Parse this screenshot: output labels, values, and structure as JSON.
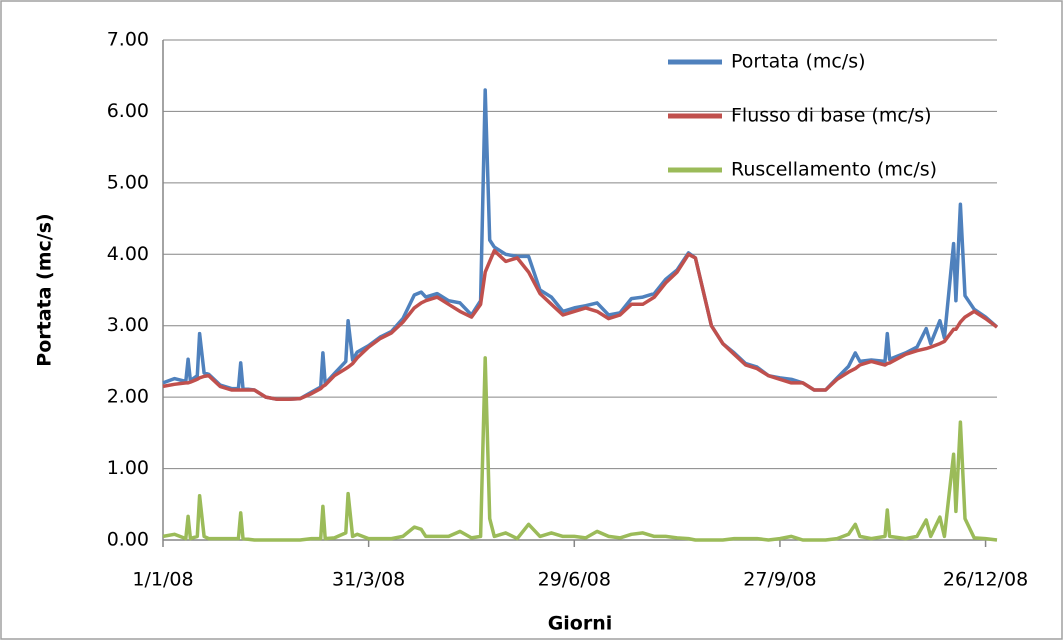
{
  "chart_data": {
    "type": "line",
    "y_label": "Portata (mc/s)",
    "x_label": "Giorni",
    "x": [
      0,
      5,
      10,
      11,
      12,
      15,
      16,
      18,
      20,
      25,
      30,
      33,
      34,
      35,
      40,
      45,
      50,
      55,
      60,
      65,
      69,
      70,
      71,
      75,
      80,
      81,
      83,
      85,
      90,
      95,
      100,
      105,
      110,
      113,
      115,
      120,
      125,
      130,
      135,
      139,
      141,
      143,
      145,
      150,
      155,
      160,
      165,
      170,
      175,
      180,
      185,
      190,
      195,
      200,
      205,
      210,
      215,
      220,
      225,
      230,
      233,
      240,
      245,
      250,
      255,
      260,
      265,
      270,
      275,
      280,
      285,
      290,
      295,
      300,
      303,
      305,
      310,
      316,
      317,
      318,
      325,
      330,
      334,
      336,
      340,
      342,
      346,
      347,
      349,
      351,
      355,
      360,
      365
    ],
    "series": [
      {
        "name": "Portata (mc/s)",
        "color": "#4f81bd",
        "values": [
          2.2,
          2.26,
          2.22,
          2.53,
          2.23,
          2.3,
          2.89,
          2.34,
          2.32,
          2.17,
          2.12,
          2.12,
          2.48,
          2.12,
          2.1,
          2.0,
          1.97,
          1.97,
          1.98,
          2.07,
          2.14,
          2.62,
          2.19,
          2.33,
          2.5,
          3.07,
          2.52,
          2.63,
          2.72,
          2.84,
          2.92,
          3.1,
          3.43,
          3.47,
          3.4,
          3.45,
          3.35,
          3.32,
          3.15,
          3.35,
          6.3,
          4.2,
          4.1,
          4.0,
          3.97,
          3.97,
          3.5,
          3.4,
          3.2,
          3.25,
          3.28,
          3.32,
          3.15,
          3.18,
          3.38,
          3.4,
          3.45,
          3.65,
          3.78,
          4.02,
          3.95,
          3.0,
          2.75,
          2.62,
          2.47,
          2.42,
          2.3,
          2.27,
          2.25,
          2.2,
          2.1,
          2.1,
          2.27,
          2.43,
          2.62,
          2.5,
          2.52,
          2.5,
          2.89,
          2.53,
          2.62,
          2.7,
          2.96,
          2.75,
          3.07,
          2.83,
          4.15,
          3.35,
          4.7,
          3.42,
          3.23,
          3.12,
          2.98
        ]
      },
      {
        "name": "Flusso di base (mc/s)",
        "color": "#c0504d",
        "values": [
          2.15,
          2.18,
          2.2,
          2.2,
          2.21,
          2.25,
          2.27,
          2.29,
          2.3,
          2.15,
          2.1,
          2.1,
          2.1,
          2.1,
          2.1,
          2.0,
          1.97,
          1.97,
          1.98,
          2.05,
          2.12,
          2.15,
          2.17,
          2.3,
          2.4,
          2.42,
          2.47,
          2.55,
          2.7,
          2.82,
          2.9,
          3.05,
          3.25,
          3.32,
          3.35,
          3.4,
          3.3,
          3.2,
          3.12,
          3.3,
          3.75,
          3.9,
          4.05,
          3.9,
          3.95,
          3.75,
          3.45,
          3.3,
          3.15,
          3.2,
          3.25,
          3.2,
          3.1,
          3.15,
          3.3,
          3.3,
          3.4,
          3.6,
          3.75,
          4.0,
          3.95,
          3.0,
          2.75,
          2.6,
          2.45,
          2.4,
          2.3,
          2.25,
          2.2,
          2.2,
          2.1,
          2.1,
          2.25,
          2.35,
          2.4,
          2.45,
          2.5,
          2.45,
          2.47,
          2.48,
          2.6,
          2.65,
          2.68,
          2.7,
          2.75,
          2.78,
          2.95,
          2.95,
          3.05,
          3.12,
          3.2,
          3.1,
          2.98
        ]
      },
      {
        "name": "Ruscellamento (mc/s)",
        "color": "#9bbb59",
        "values": [
          0.05,
          0.08,
          0.02,
          0.33,
          0.02,
          0.05,
          0.62,
          0.05,
          0.02,
          0.02,
          0.02,
          0.02,
          0.38,
          0.02,
          0,
          0,
          0,
          0,
          0,
          0.02,
          0.02,
          0.47,
          0.02,
          0.03,
          0.1,
          0.65,
          0.05,
          0.08,
          0.02,
          0.02,
          0.02,
          0.05,
          0.18,
          0.15,
          0.05,
          0.05,
          0.05,
          0.12,
          0.03,
          0.05,
          2.55,
          0.3,
          0.05,
          0.1,
          0.02,
          0.22,
          0.05,
          0.1,
          0.05,
          0.05,
          0.03,
          0.12,
          0.05,
          0.03,
          0.08,
          0.1,
          0.05,
          0.05,
          0.03,
          0.02,
          0,
          0,
          0,
          0.02,
          0.02,
          0.02,
          0,
          0.02,
          0.05,
          0,
          0,
          0,
          0.02,
          0.08,
          0.22,
          0.05,
          0.02,
          0.05,
          0.42,
          0.05,
          0.02,
          0.05,
          0.28,
          0.05,
          0.32,
          0.05,
          1.2,
          0.4,
          1.65,
          0.3,
          0.03,
          0.02,
          0
        ]
      }
    ],
    "xlim": [
      0,
      365
    ],
    "xticks": [
      {
        "value": 0,
        "label": "1/1/08"
      },
      {
        "value": 90,
        "label": "31/3/08"
      },
      {
        "value": 180,
        "label": "29/6/08"
      },
      {
        "value": 270,
        "label": "27/9/08"
      },
      {
        "value": 360,
        "label": "26/12/08"
      }
    ],
    "ylim": [
      0,
      7
    ],
    "yticks": [
      {
        "value": 0,
        "label": "0.00"
      },
      {
        "value": 1,
        "label": "1.00"
      },
      {
        "value": 2,
        "label": "2.00"
      },
      {
        "value": 3,
        "label": "3.00"
      },
      {
        "value": 4,
        "label": "4.00"
      },
      {
        "value": 5,
        "label": "5.00"
      },
      {
        "value": 6,
        "label": "6.00"
      },
      {
        "value": 7,
        "label": "7.00"
      }
    ],
    "grid": true,
    "legend": "top-right"
  }
}
